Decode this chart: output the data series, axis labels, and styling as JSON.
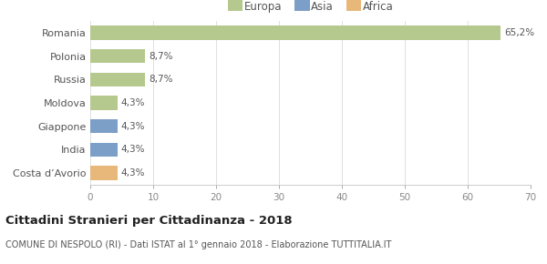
{
  "categories": [
    "Romania",
    "Polonia",
    "Russia",
    "Moldova",
    "Giappone",
    "India",
    "Costa d’Avorio"
  ],
  "values": [
    65.2,
    8.7,
    8.7,
    4.3,
    4.3,
    4.3,
    4.3
  ],
  "labels": [
    "65,2%",
    "8,7%",
    "8,7%",
    "4,3%",
    "4,3%",
    "4,3%",
    "4,3%"
  ],
  "colors": [
    "#b5c98e",
    "#b5c98e",
    "#b5c98e",
    "#b5c98e",
    "#7b9fc7",
    "#7b9fc7",
    "#e8b87a"
  ],
  "legend": [
    {
      "label": "Europa",
      "color": "#b5c98e"
    },
    {
      "label": "Asia",
      "color": "#7b9fc7"
    },
    {
      "label": "Africa",
      "color": "#e8b87a"
    }
  ],
  "xlim": [
    0,
    70
  ],
  "xticks": [
    0,
    10,
    20,
    30,
    40,
    50,
    60,
    70
  ],
  "title": "Cittadini Stranieri per Cittadinanza - 2018",
  "subtitle": "COMUNE DI NESPOLO (RI) - Dati ISTAT al 1° gennaio 2018 - Elaborazione TUTTITALIA.IT",
  "bg_color": "#ffffff",
  "grid_color": "#e0e0e0",
  "bar_height": 0.6,
  "label_fontsize": 7.5,
  "ytick_fontsize": 8.0,
  "xtick_fontsize": 7.5,
  "title_fontsize": 9.5,
  "subtitle_fontsize": 7.0,
  "legend_fontsize": 8.5
}
